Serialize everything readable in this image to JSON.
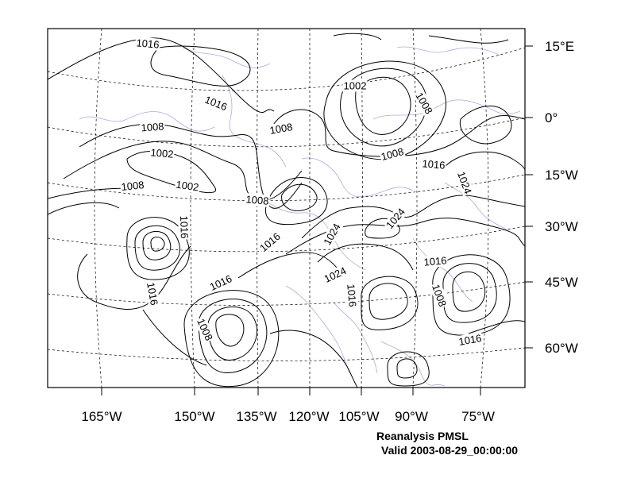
{
  "map": {
    "product": "Reanalysis PMSL",
    "valid": "Valid 2003-08-29_00:00:00",
    "x_axis_labels": [
      "165°W",
      "150°W",
      "135°W",
      "120°W",
      "105°W",
      "90°W",
      "75°W"
    ],
    "y_axis_labels": [
      "15°E",
      "0°",
      "15°W",
      "30°W",
      "45°W",
      "60°W"
    ],
    "contour_labels": [
      {
        "text": "1016",
        "rotate": 5
      },
      {
        "text": "1016",
        "rotate": 22
      },
      {
        "text": "1008",
        "rotate": -4
      },
      {
        "text": "1002",
        "rotate": 5
      },
      {
        "text": "1008",
        "rotate": -6
      },
      {
        "text": "1002",
        "rotate": 8
      },
      {
        "text": "1002",
        "rotate": 0
      },
      {
        "text": "1008",
        "rotate": 60
      },
      {
        "text": "1008",
        "rotate": -10
      },
      {
        "text": "1008",
        "rotate": -15
      },
      {
        "text": "1008",
        "rotate": 5
      },
      {
        "text": "1016",
        "rotate": 5
      },
      {
        "text": "1024",
        "rotate": 70
      },
      {
        "text": "1024",
        "rotate": -50
      },
      {
        "text": "1016",
        "rotate": -40
      },
      {
        "text": "1024",
        "rotate": -60
      },
      {
        "text": "1016",
        "rotate": 88
      },
      {
        "text": "1016",
        "rotate": -25
      },
      {
        "text": "1024",
        "rotate": -25
      },
      {
        "text": "1016",
        "rotate": -5
      },
      {
        "text": "1016",
        "rotate": 80
      },
      {
        "text": "1016",
        "rotate": 85
      },
      {
        "text": "1008",
        "rotate": 70
      },
      {
        "text": "1016",
        "rotate": -10
      },
      {
        "text": "1008",
        "rotate": 65
      }
    ],
    "colors": {
      "frame": "#000000",
      "contour": "#000000",
      "coastline": "#b8a8d8",
      "graticule": "#000000"
    }
  }
}
